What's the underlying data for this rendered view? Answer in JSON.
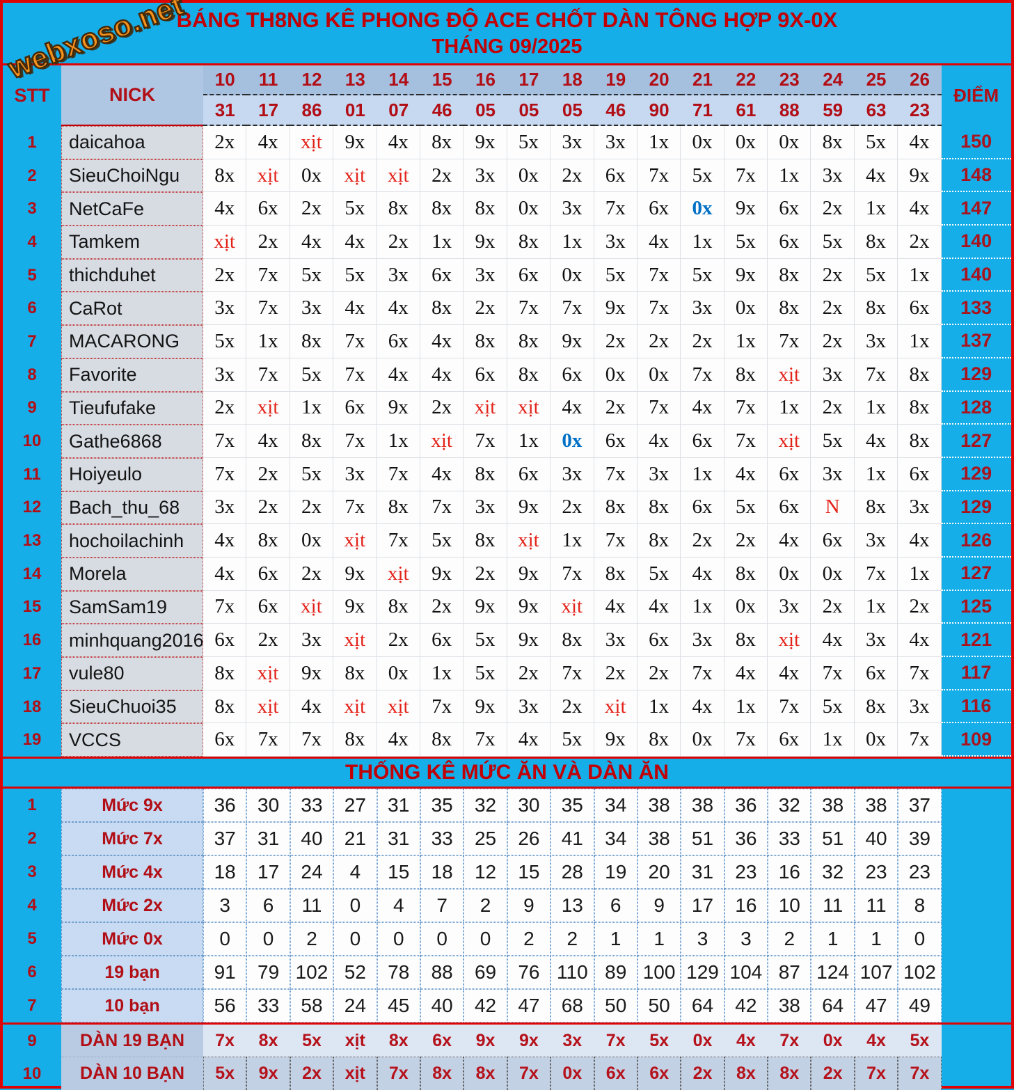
{
  "logo": "webxoso.net",
  "title": {
    "line1": "BÁNG TH8NG KÊ PHONG ĐỘ ACE CHỐT DÀN TÔNG HỢP 9X-0X",
    "line2": "THÁNG 09/2025"
  },
  "header": {
    "stt_label": "STT",
    "nick_label": "NICK",
    "diem_label": "ĐIỂM",
    "days": [
      "10",
      "11",
      "12",
      "13",
      "14",
      "15",
      "16",
      "17",
      "18",
      "19",
      "20",
      "21",
      "22",
      "23",
      "24",
      "25",
      "26"
    ],
    "results": [
      "31",
      "17",
      "86",
      "01",
      "07",
      "46",
      "05",
      "05",
      "05",
      "46",
      "90",
      "71",
      "61",
      "88",
      "59",
      "63",
      "23"
    ]
  },
  "players": [
    {
      "stt": "1",
      "nick": "daicahoa",
      "cells": [
        "2x",
        "4x",
        "xịt",
        "9x",
        "4x",
        "8x",
        "9x",
        "5x",
        "3x",
        "3x",
        "1x",
        "0x",
        "0x",
        "0x",
        "8x",
        "5x",
        "4x"
      ],
      "diem": "150"
    },
    {
      "stt": "2",
      "nick": "SieuChoiNgu",
      "cells": [
        "8x",
        "xịt",
        "0x",
        "xịt",
        "xịt",
        "2x",
        "3x",
        "0x",
        "2x",
        "6x",
        "7x",
        "5x",
        "7x",
        "1x",
        "3x",
        "4x",
        "9x"
      ],
      "diem": "148"
    },
    {
      "stt": "3",
      "nick": "NetCaFe",
      "cells": [
        "4x",
        "6x",
        "2x",
        "5x",
        "8x",
        "8x",
        "8x",
        "0x",
        "3x",
        "7x",
        "6x",
        "0x",
        "9x",
        "6x",
        "2x",
        "1x",
        "4x"
      ],
      "blue": [
        11
      ],
      "diem": "147"
    },
    {
      "stt": "4",
      "nick": "Tamkem",
      "cells": [
        "xịt",
        "2x",
        "4x",
        "4x",
        "2x",
        "1x",
        "9x",
        "8x",
        "1x",
        "3x",
        "4x",
        "1x",
        "5x",
        "6x",
        "5x",
        "8x",
        "2x"
      ],
      "diem": "140"
    },
    {
      "stt": "5",
      "nick": "thichduhet",
      "cells": [
        "2x",
        "7x",
        "5x",
        "5x",
        "3x",
        "6x",
        "3x",
        "6x",
        "0x",
        "5x",
        "7x",
        "5x",
        "9x",
        "8x",
        "2x",
        "5x",
        "1x"
      ],
      "diem": "140"
    },
    {
      "stt": "6",
      "nick": "CaRot",
      "cells": [
        "3x",
        "7x",
        "3x",
        "4x",
        "4x",
        "8x",
        "2x",
        "7x",
        "7x",
        "9x",
        "7x",
        "3x",
        "0x",
        "8x",
        "2x",
        "8x",
        "6x"
      ],
      "diem": "133"
    },
    {
      "stt": "7",
      "nick": "MACARONG",
      "cells": [
        "5x",
        "1x",
        "8x",
        "7x",
        "6x",
        "4x",
        "8x",
        "8x",
        "9x",
        "2x",
        "2x",
        "2x",
        "1x",
        "7x",
        "2x",
        "3x",
        "1x"
      ],
      "diem": "137"
    },
    {
      "stt": "8",
      "nick": "Favorite",
      "cells": [
        "3x",
        "7x",
        "5x",
        "7x",
        "4x",
        "4x",
        "6x",
        "8x",
        "6x",
        "0x",
        "0x",
        "7x",
        "8x",
        "xịt",
        "3x",
        "7x",
        "8x"
      ],
      "diem": "129"
    },
    {
      "stt": "9",
      "nick": "Tieufufake",
      "cells": [
        "2x",
        "xịt",
        "1x",
        "6x",
        "9x",
        "2x",
        "xịt",
        "xịt",
        "4x",
        "2x",
        "7x",
        "4x",
        "7x",
        "1x",
        "2x",
        "1x",
        "8x"
      ],
      "diem": "128"
    },
    {
      "stt": "10",
      "nick": "Gathe6868",
      "cells": [
        "7x",
        "4x",
        "8x",
        "7x",
        "1x",
        "xịt",
        "7x",
        "1x",
        "0x",
        "6x",
        "4x",
        "6x",
        "7x",
        "xịt",
        "5x",
        "4x",
        "8x"
      ],
      "blue": [
        8
      ],
      "diem": "127"
    },
    {
      "stt": "11",
      "nick": "Hoiyeulo",
      "cells": [
        "7x",
        "2x",
        "5x",
        "3x",
        "7x",
        "4x",
        "8x",
        "6x",
        "3x",
        "7x",
        "3x",
        "1x",
        "4x",
        "6x",
        "3x",
        "1x",
        "6x"
      ],
      "diem": "129"
    },
    {
      "stt": "12",
      "nick": "Bach_thu_68",
      "cells": [
        "3x",
        "2x",
        "2x",
        "7x",
        "8x",
        "7x",
        "3x",
        "9x",
        "2x",
        "8x",
        "8x",
        "6x",
        "5x",
        "6x",
        "N",
        "8x",
        "3x"
      ],
      "diem": "129"
    },
    {
      "stt": "13",
      "nick": "hochoilachinh",
      "cells": [
        "4x",
        "8x",
        "0x",
        "xịt",
        "7x",
        "5x",
        "8x",
        "xịt",
        "1x",
        "7x",
        "8x",
        "2x",
        "2x",
        "4x",
        "6x",
        "3x",
        "4x"
      ],
      "diem": "126"
    },
    {
      "stt": "14",
      "nick": "Morela",
      "cells": [
        "4x",
        "6x",
        "2x",
        "9x",
        "xịt",
        "9x",
        "2x",
        "9x",
        "7x",
        "8x",
        "5x",
        "4x",
        "8x",
        "0x",
        "0x",
        "7x",
        "1x"
      ],
      "diem": "127"
    },
    {
      "stt": "15",
      "nick": "SamSam19",
      "cells": [
        "7x",
        "6x",
        "xịt",
        "9x",
        "8x",
        "2x",
        "9x",
        "9x",
        "xịt",
        "4x",
        "4x",
        "1x",
        "0x",
        "3x",
        "2x",
        "1x",
        "2x"
      ],
      "diem": "125"
    },
    {
      "stt": "16",
      "nick": "minhquang2016",
      "cells": [
        "6x",
        "2x",
        "3x",
        "xịt",
        "2x",
        "6x",
        "5x",
        "9x",
        "8x",
        "3x",
        "6x",
        "3x",
        "8x",
        "xịt",
        "4x",
        "3x",
        "4x"
      ],
      "diem": "121"
    },
    {
      "stt": "17",
      "nick": "vule80",
      "cells": [
        "8x",
        "xịt",
        "9x",
        "8x",
        "0x",
        "1x",
        "5x",
        "2x",
        "7x",
        "2x",
        "2x",
        "7x",
        "4x",
        "4x",
        "7x",
        "6x",
        "7x"
      ],
      "diem": "117"
    },
    {
      "stt": "18",
      "nick": "SieuChuoi35",
      "cells": [
        "8x",
        "xịt",
        "4x",
        "xịt",
        "xịt",
        "7x",
        "9x",
        "3x",
        "2x",
        "xịt",
        "1x",
        "4x",
        "1x",
        "7x",
        "5x",
        "8x",
        "3x"
      ],
      "diem": "116"
    },
    {
      "stt": "19",
      "nick": "VCCS",
      "cells": [
        "6x",
        "7x",
        "7x",
        "8x",
        "4x",
        "8x",
        "7x",
        "4x",
        "5x",
        "9x",
        "8x",
        "0x",
        "7x",
        "6x",
        "1x",
        "0x",
        "7x"
      ],
      "diem": "109"
    }
  ],
  "stats": {
    "title": "THỐNG KÊ MỨC ĂN VÀ DÀN ĂN",
    "rows": [
      {
        "stt": "1",
        "label": "Mức 9x",
        "values": [
          "36",
          "30",
          "33",
          "27",
          "31",
          "35",
          "32",
          "30",
          "35",
          "34",
          "38",
          "38",
          "36",
          "32",
          "38",
          "38",
          "37"
        ]
      },
      {
        "stt": "2",
        "label": "Mức 7x",
        "values": [
          "37",
          "31",
          "40",
          "21",
          "31",
          "33",
          "25",
          "26",
          "41",
          "34",
          "38",
          "51",
          "36",
          "33",
          "51",
          "40",
          "39"
        ]
      },
      {
        "stt": "3",
        "label": "Mức 4x",
        "values": [
          "18",
          "17",
          "24",
          "4",
          "15",
          "18",
          "12",
          "15",
          "28",
          "19",
          "20",
          "31",
          "23",
          "16",
          "32",
          "23",
          "23"
        ]
      },
      {
        "stt": "4",
        "label": "Mức 2x",
        "values": [
          "3",
          "6",
          "11",
          "0",
          "4",
          "7",
          "2",
          "9",
          "13",
          "6",
          "9",
          "17",
          "16",
          "10",
          "11",
          "11",
          "8"
        ]
      },
      {
        "stt": "5",
        "label": "Mức 0x",
        "values": [
          "0",
          "0",
          "2",
          "0",
          "0",
          "0",
          "0",
          "2",
          "2",
          "1",
          "1",
          "3",
          "3",
          "2",
          "1",
          "1",
          "0"
        ]
      },
      {
        "stt": "6",
        "label": "19 bạn",
        "values": [
          "91",
          "79",
          "102",
          "52",
          "78",
          "88",
          "69",
          "76",
          "110",
          "89",
          "100",
          "129",
          "104",
          "87",
          "124",
          "107",
          "102"
        ]
      },
      {
        "stt": "7",
        "label": "10 bạn",
        "values": [
          "56",
          "33",
          "58",
          "24",
          "45",
          "40",
          "42",
          "47",
          "68",
          "50",
          "50",
          "64",
          "42",
          "38",
          "64",
          "47",
          "49"
        ]
      }
    ]
  },
  "dan": {
    "rows": [
      {
        "stt": "9",
        "label": "DÀN 19 BẠN",
        "values": [
          "7x",
          "8x",
          "5x",
          "xịt",
          "8x",
          "6x",
          "9x",
          "9x",
          "3x",
          "7x",
          "5x",
          "0x",
          "4x",
          "7x",
          "0x",
          "4x",
          "5x"
        ]
      },
      {
        "stt": "10",
        "label": "DÀN 10 BẠN",
        "values": [
          "5x",
          "9x",
          "2x",
          "xịt",
          "7x",
          "8x",
          "8x",
          "7x",
          "0x",
          "6x",
          "6x",
          "2x",
          "8x",
          "8x",
          "2x",
          "7x",
          "7x"
        ]
      }
    ]
  },
  "colors": {
    "background_cyan": "#16AEE9",
    "accent_red_text": "#B10E16",
    "title_red": "#C00004",
    "line_red": "#DE0405",
    "miss_red": "#E32219",
    "special_blue": "#0070C6",
    "logo_orange": "#F6921E",
    "header_top_bg": "#A5BFDF",
    "header_bottom_bg": "#C6D9F1",
    "nick_cell_bg": "#D7DCE3",
    "stats_label_bg": "#C8DBF2",
    "dan_label_bg": "#B9CBE2",
    "dan_row1_bg": "#DDE7F4",
    "dan_row2_bg": "#C3D1E4"
  }
}
